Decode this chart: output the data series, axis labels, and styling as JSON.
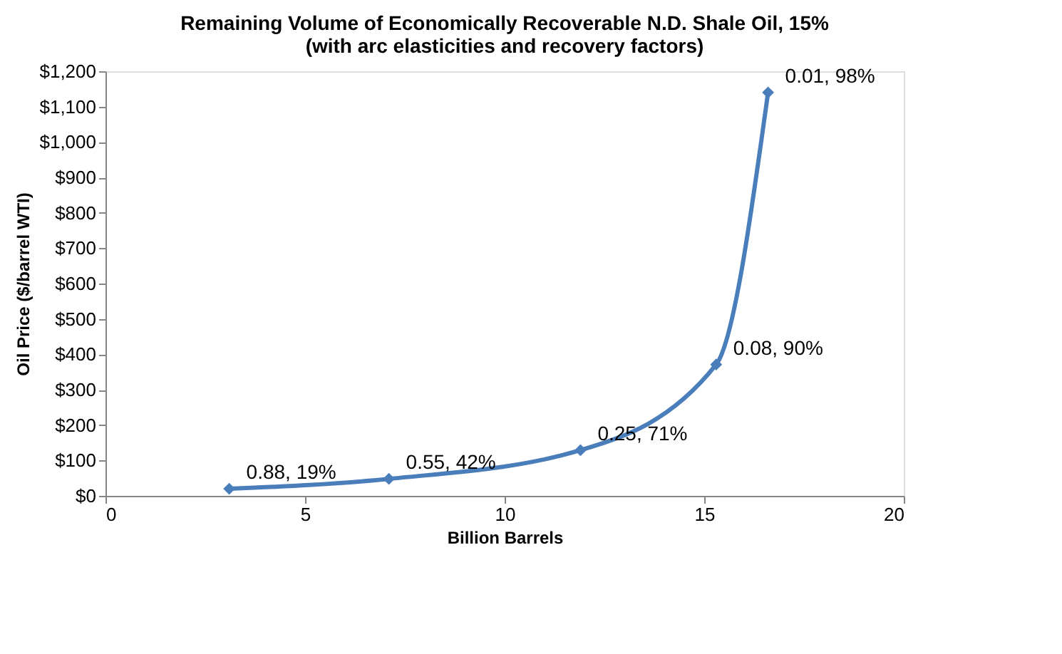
{
  "chart_data": {
    "type": "line",
    "title": [
      "Remaining Volume of Economically Recoverable N.D. Shale Oil, 15%",
      "(with arc elasticities and recovery factors)"
    ],
    "xlabel": "Billion Barrels",
    "ylabel": "Oil Price ($/barrel WTI)",
    "x": [
      3.1,
      7.1,
      11.9,
      15.3,
      16.6
    ],
    "series": [
      {
        "color": "#4a7ebb",
        "values": [
          20,
          48,
          129,
          371,
          1140
        ]
      }
    ],
    "xlim": [
      0,
      20
    ],
    "xticks": [
      0,
      5,
      10,
      15,
      20
    ],
    "ylim": [
      0,
      1200
    ],
    "yticks": [
      {
        "value": 0,
        "label": "$0"
      },
      {
        "value": 100,
        "label": "$100"
      },
      {
        "value": 200,
        "label": "$200"
      },
      {
        "value": 300,
        "label": "$300"
      },
      {
        "value": 400,
        "label": "$400"
      },
      {
        "value": 500,
        "label": "$500"
      },
      {
        "value": 600,
        "label": "$600"
      },
      {
        "value": 700,
        "label": "$700"
      },
      {
        "value": 800,
        "label": "$800"
      },
      {
        "value": 900,
        "label": "$900"
      },
      {
        "value": 1000,
        "label": "$1,000"
      },
      {
        "value": 1100,
        "label": "$1,100"
      },
      {
        "value": 1200,
        "label": "$1,200"
      }
    ],
    "annotations": [
      {
        "text": "0.88, 19%",
        "x": 3.1,
        "y": 20
      },
      {
        "text": "0.55, 42%",
        "x": 7.1,
        "y": 48
      },
      {
        "text": "0.25, 71%",
        "x": 11.9,
        "y": 129
      },
      {
        "text": "0.08, 90%",
        "x": 15.3,
        "y": 371
      },
      {
        "text": "0.01, 98%",
        "x": 16.6,
        "y": 1140
      }
    ],
    "marker": "diamond",
    "line_style": "solid",
    "grid": false
  }
}
